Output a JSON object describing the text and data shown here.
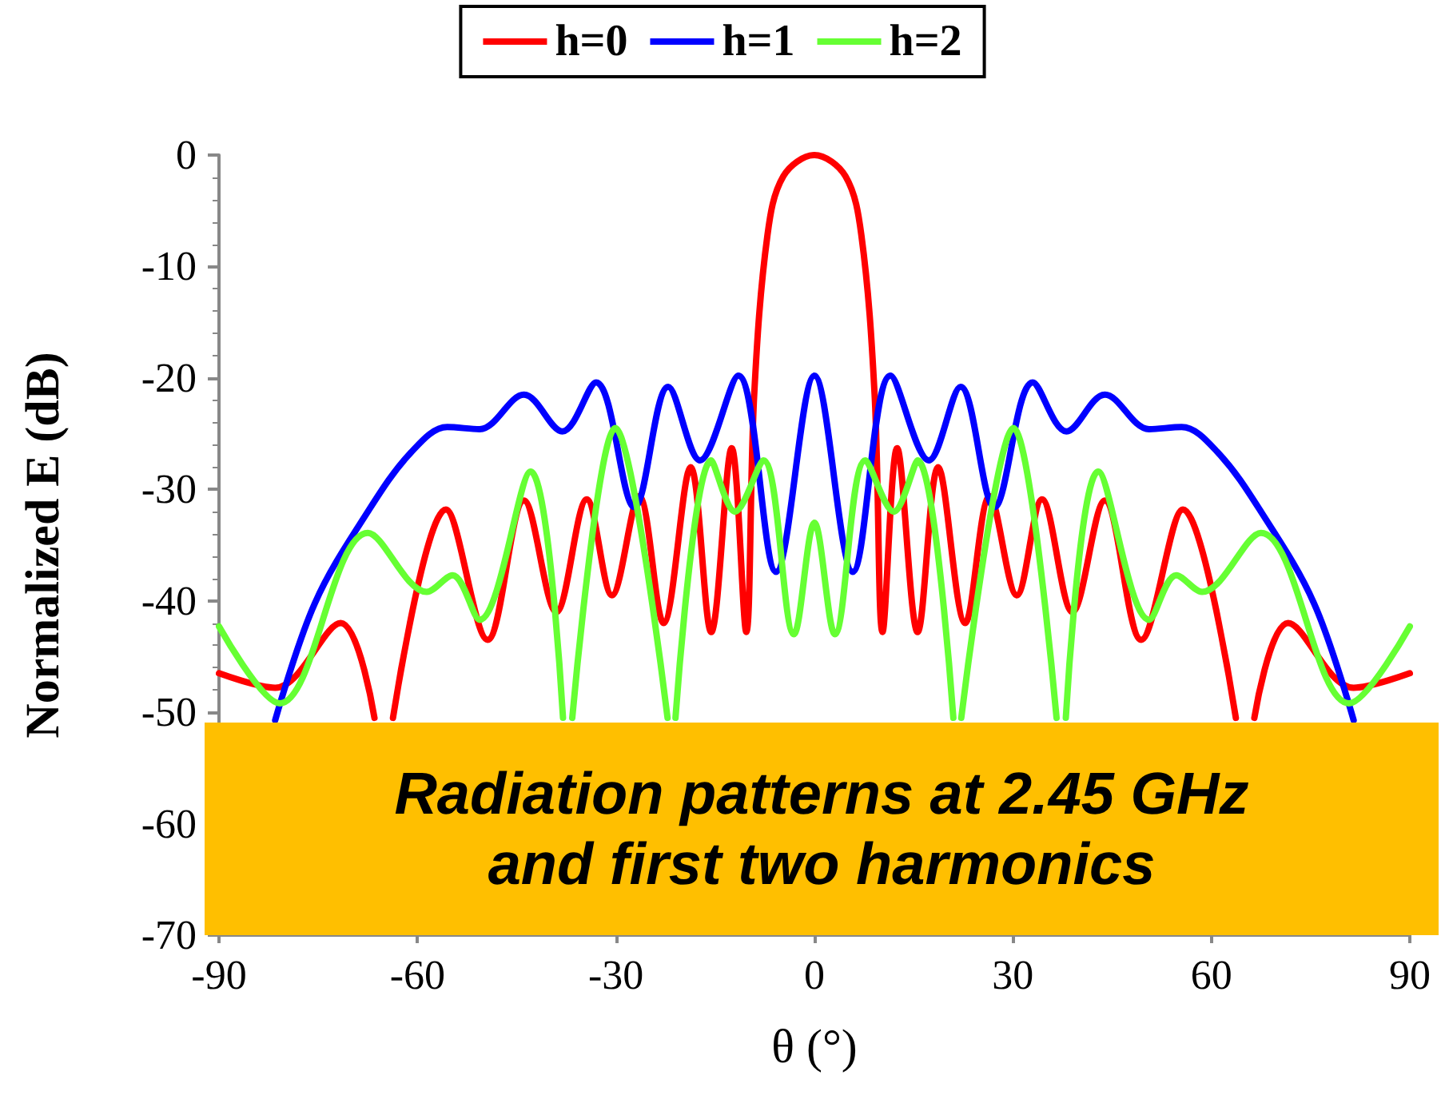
{
  "chart_data": {
    "type": "line",
    "xlabel": "θ (°)",
    "ylabel": "Normalized E (dB)",
    "xlim": [
      -90,
      90
    ],
    "xticks": [
      -90,
      -60,
      -30,
      0,
      30,
      60,
      90
    ],
    "ylim": [
      -70,
      0
    ],
    "yticks": [
      -70,
      -60,
      -50,
      -40,
      -30,
      -20,
      -10,
      0
    ],
    "legend": "top",
    "marker": "none",
    "line_style": "solid",
    "grid": false,
    "annotations": [
      "Radiation patterns at 2.45 GHz\nand first two harmonics"
    ],
    "series": [
      {
        "name": "h=0",
        "color": "#ff0000",
        "x": [
          -90,
          -81.5,
          -71.6,
          -66.5,
          -65,
          -63.7,
          -55.7,
          -49.4,
          -43.9,
          -39,
          -34.4,
          -30.6,
          -26.5,
          -22.8,
          -18.7,
          -15.6,
          -12.5,
          -10.3,
          -9.1,
          -7.1,
          -4.7,
          0,
          4.7,
          7.1,
          9.1,
          10.3,
          12.5,
          15.6,
          18.7,
          22.8,
          26.5,
          30.6,
          34.4,
          39,
          43.9,
          49.4,
          55.7,
          63.7,
          65,
          66.5,
          71.6,
          81.5,
          90
        ],
        "values": [
          -46.5,
          -47.8,
          -42,
          -50.5,
          null,
          -50.5,
          -31.8,
          -43.5,
          -31,
          -41,
          -30.9,
          -39.5,
          -30.6,
          -42,
          -28,
          -42.8,
          -26.3,
          -42.8,
          -21.5,
          -7.2,
          -1.9,
          0,
          -1.9,
          -7.2,
          -21.5,
          -42.8,
          -26.3,
          -42.8,
          -28,
          -42,
          -30.6,
          -39.5,
          -30.9,
          -41,
          -31,
          -43.5,
          -31.8,
          -50.5,
          null,
          -50.5,
          -42,
          -47.8,
          -46.5
        ]
      },
      {
        "name": "h=1",
        "color": "#0000ff",
        "x": [
          -81.5,
          -75.5,
          -67.5,
          -61,
          -55.5,
          -50.6,
          -43.9,
          -38.1,
          -33,
          -27.2,
          -22.1,
          -17.3,
          -11.5,
          -5.8,
          0,
          5.8,
          11.5,
          17.3,
          22.1,
          27.2,
          33,
          38.1,
          43.9,
          50.6,
          55.5,
          61,
          67.5,
          75.5,
          81.5
        ],
        "values": [
          -50.7,
          -40.2,
          -32,
          -26.7,
          -24.4,
          -24.6,
          -21.5,
          -24.8,
          -20.4,
          -31.6,
          -20.8,
          -27.4,
          -19.8,
          -37.4,
          -19.8,
          -37.4,
          -19.8,
          -27.4,
          -20.8,
          -31.6,
          -20.4,
          -24.8,
          -21.5,
          -24.6,
          -24.4,
          -26.7,
          -32,
          -40.2,
          -50.7
        ]
      },
      {
        "name": "h=2",
        "color": "#66ff33",
        "x": [
          -90,
          -80.8,
          -67.5,
          -58.6,
          -54.7,
          -50.6,
          -42.9,
          -38,
          -37.3,
          -36.6,
          -30.1,
          -22.2,
          -21.6,
          -21,
          -15.6,
          -12,
          -7.7,
          -3.1,
          0,
          3.1,
          7.7,
          12,
          15.6,
          21,
          21.6,
          22.2,
          30.1,
          36.6,
          37.3,
          38,
          42.9,
          50.6,
          54.7,
          58.6,
          67.5,
          80.8,
          90
        ],
        "values": [
          -42.3,
          -49.2,
          -33.9,
          -39.2,
          -37.7,
          -41.7,
          -28.4,
          -50.5,
          null,
          -50.5,
          -24.5,
          -50.5,
          null,
          -50.5,
          -27.4,
          -32,
          -27.4,
          -43,
          -33,
          -43,
          -27.4,
          -32,
          -27.4,
          -50.5,
          null,
          -50.5,
          -24.5,
          -50.5,
          null,
          -50.5,
          -28.4,
          -41.7,
          -37.7,
          -39.2,
          -33.9,
          -49.2,
          -42.3
        ]
      }
    ]
  }
}
